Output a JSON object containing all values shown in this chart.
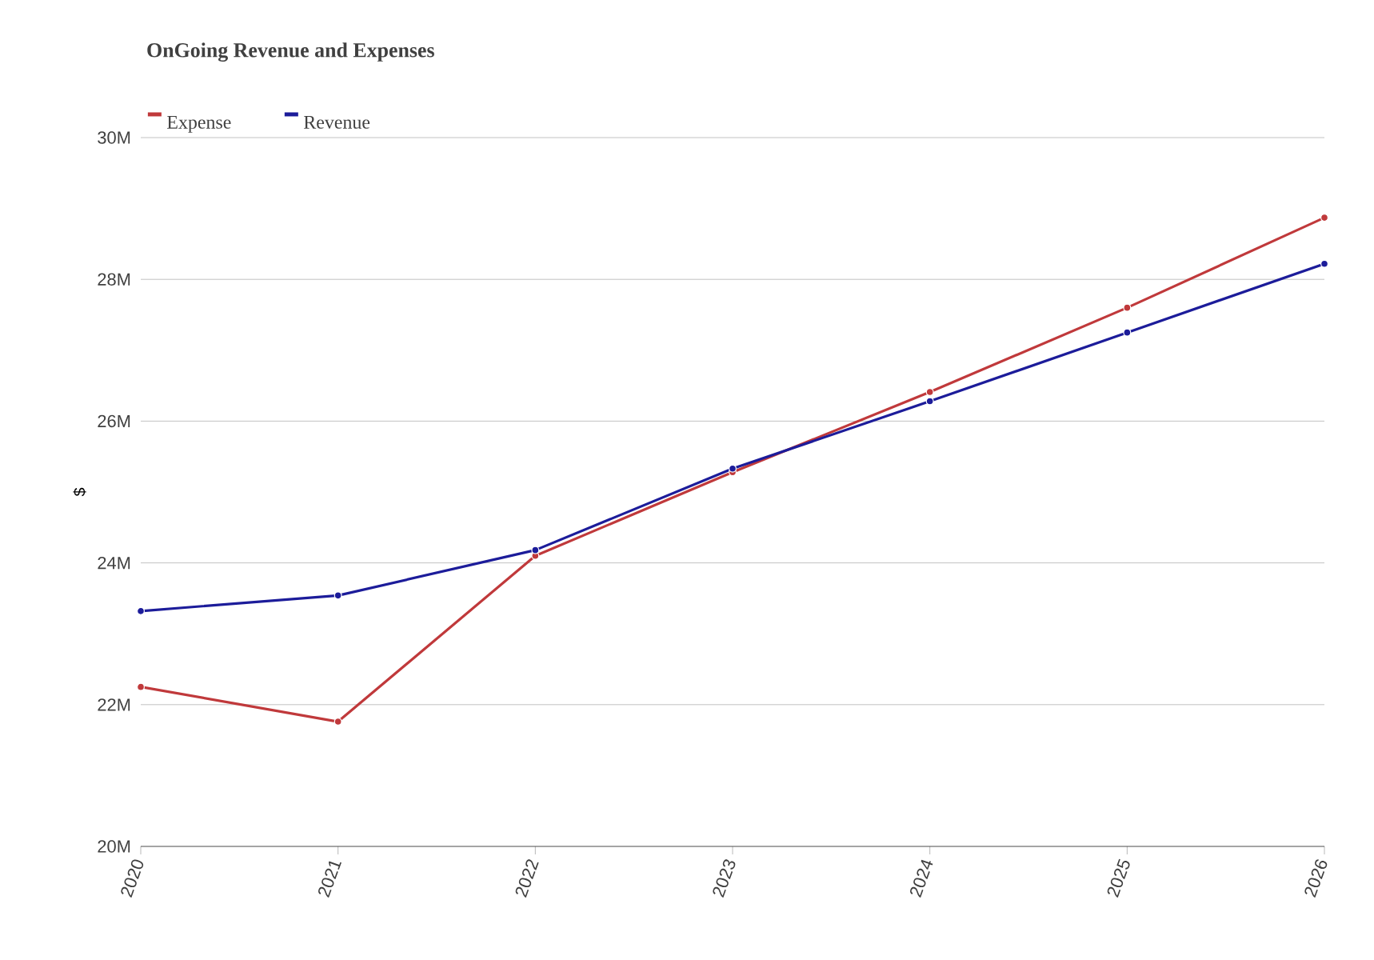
{
  "chart_data": {
    "type": "line",
    "title": "OnGoing Revenue and Expenses",
    "ylabel": "$",
    "categories": [
      "2020",
      "2021",
      "2022",
      "2023",
      "2024",
      "2025",
      "2026"
    ],
    "series": [
      {
        "name": "Expense",
        "color": "#c0393b",
        "values": [
          22.25,
          21.76,
          24.1,
          25.28,
          26.41,
          27.6,
          28.87
        ]
      },
      {
        "name": "Revenue",
        "color": "#1c1c9a",
        "values": [
          23.32,
          23.54,
          24.18,
          25.33,
          26.28,
          27.25,
          28.22
        ]
      }
    ],
    "ylim": [
      20,
      30
    ],
    "yticks": [
      {
        "value": 20,
        "label": "20M"
      },
      {
        "value": 22,
        "label": "22M"
      },
      {
        "value": 24,
        "label": "24M"
      },
      {
        "value": 26,
        "label": "26M"
      },
      {
        "value": 28,
        "label": "28M"
      },
      {
        "value": 30,
        "label": "30M"
      }
    ],
    "grid": "y",
    "legend": "top left",
    "marker": "circle",
    "line_style": "solid"
  }
}
